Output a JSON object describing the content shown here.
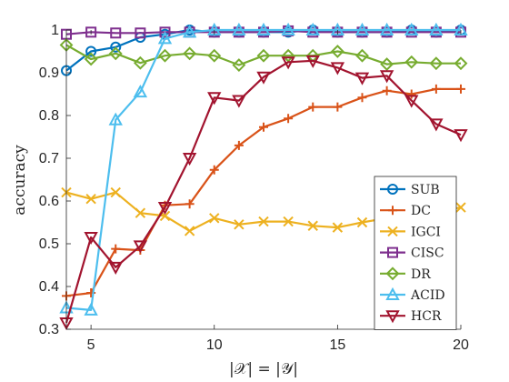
{
  "chart_data": {
    "type": "line",
    "xlabel": "|𝒳| = |𝒴|",
    "ylabel": "accuracy",
    "xlim": [
      4,
      20
    ],
    "ylim": [
      0.3,
      1.0
    ],
    "xticks": [
      5,
      10,
      15,
      20
    ],
    "yticks": [
      0.3,
      0.4,
      0.5,
      0.6,
      0.7,
      0.8,
      0.9,
      1.0
    ],
    "ytick_labels": [
      "0.3",
      "0.4",
      "0.5",
      "0.6",
      "0.7",
      "0.8",
      "0.9",
      "1"
    ],
    "grid": false,
    "legend_position": "bottom-right",
    "x": [
      4,
      5,
      6,
      7,
      8,
      9,
      10,
      11,
      12,
      13,
      14,
      15,
      16,
      17,
      18,
      19,
      20
    ],
    "series": [
      {
        "name": "SUB",
        "color": "#0072BD",
        "marker": "circle",
        "values": [
          0.905,
          0.95,
          0.96,
          0.983,
          0.99,
          1.0,
          0.995,
          0.995,
          0.995,
          0.995,
          1.0,
          0.995,
          0.995,
          0.995,
          1.0,
          0.995,
          1.0
        ]
      },
      {
        "name": "DC",
        "color": "#D95319",
        "marker": "plus",
        "values": [
          0.378,
          0.385,
          0.488,
          0.485,
          0.59,
          0.593,
          0.673,
          0.73,
          0.773,
          0.793,
          0.82,
          0.82,
          0.842,
          0.858,
          0.85,
          0.862,
          0.862
        ]
      },
      {
        "name": "IGCI",
        "color": "#EDB120",
        "marker": "cross",
        "values": [
          0.62,
          0.605,
          0.62,
          0.572,
          0.565,
          0.53,
          0.56,
          0.545,
          0.552,
          0.552,
          0.542,
          0.538,
          0.55,
          0.56,
          0.575,
          0.575,
          0.585
        ]
      },
      {
        "name": "CISC",
        "color": "#7E2F8E",
        "marker": "square",
        "values": [
          0.99,
          0.995,
          0.993,
          0.993,
          0.995,
          0.995,
          0.995,
          0.995,
          0.995,
          0.998,
          0.995,
          0.995,
          0.995,
          0.995,
          0.995,
          0.995,
          0.995
        ]
      },
      {
        "name": "DR",
        "color": "#77AC30",
        "marker": "diamond",
        "values": [
          0.965,
          0.932,
          0.945,
          0.923,
          0.94,
          0.945,
          0.94,
          0.918,
          0.94,
          0.94,
          0.94,
          0.95,
          0.94,
          0.92,
          0.925,
          0.922,
          0.922
        ]
      },
      {
        "name": "ACID",
        "color": "#4DBEEE",
        "marker": "triangle-up",
        "values": [
          0.35,
          0.345,
          0.79,
          0.855,
          0.98,
          0.995,
          1.0,
          1.0,
          1.0,
          1.0,
          1.0,
          1.0,
          1.0,
          1.0,
          1.0,
          1.0,
          1.0
        ]
      },
      {
        "name": "HCR",
        "color": "#A2142F",
        "marker": "triangle-down",
        "values": [
          0.315,
          0.515,
          0.445,
          0.495,
          0.585,
          0.7,
          0.842,
          0.835,
          0.89,
          0.925,
          0.928,
          0.912,
          0.888,
          0.893,
          0.835,
          0.78,
          0.755
        ]
      }
    ]
  }
}
